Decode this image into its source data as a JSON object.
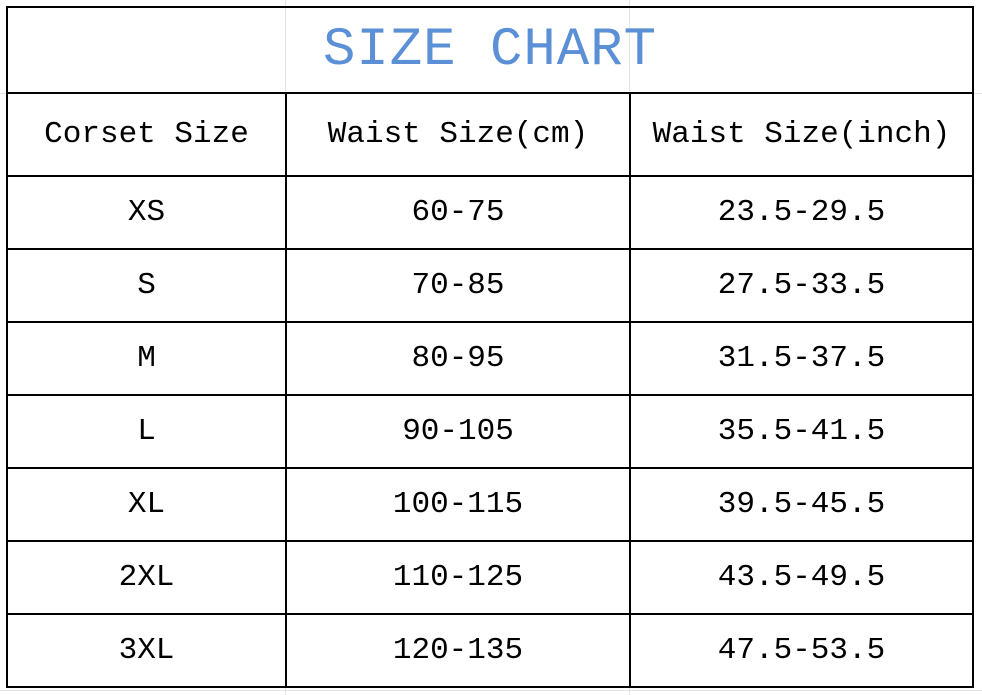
{
  "title": "SIZE CHART",
  "title_color": "#5b8fd6",
  "headers": [
    "Corset Size",
    "Waist Size(cm)",
    "Waist Size(inch)"
  ],
  "rows": [
    [
      "XS",
      "60-75",
      "23.5-29.5"
    ],
    [
      "S",
      "70-85",
      "27.5-33.5"
    ],
    [
      "M",
      "80-95",
      "31.5-37.5"
    ],
    [
      "L",
      "90-105",
      "35.5-41.5"
    ],
    [
      "XL",
      "100-115",
      "39.5-45.5"
    ],
    [
      "2XL",
      "110-125",
      "43.5-49.5"
    ],
    [
      "3XL",
      "120-135",
      "47.5-53.5"
    ]
  ]
}
